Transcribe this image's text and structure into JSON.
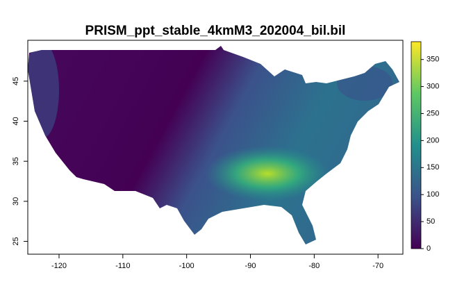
{
  "chart_data": {
    "type": "raster",
    "title": "PRISM_ppt_stable_4kmM3_202004_bil.bil",
    "xlim": [
      -124.9,
      -66.1
    ],
    "xticks": [
      -120,
      -110,
      -100,
      -90,
      -80,
      -70
    ],
    "ylim": [
      23.4,
      50.1
    ],
    "yticks": [
      25,
      30,
      35,
      40,
      45
    ],
    "colorbar": {
      "lim": [
        0,
        383
      ],
      "ticks": [
        0,
        50,
        100,
        150,
        200,
        250,
        300,
        350
      ],
      "colors": [
        "#440154",
        "#3b528b",
        "#21908c",
        "#5dc863",
        "#fde725"
      ]
    }
  }
}
